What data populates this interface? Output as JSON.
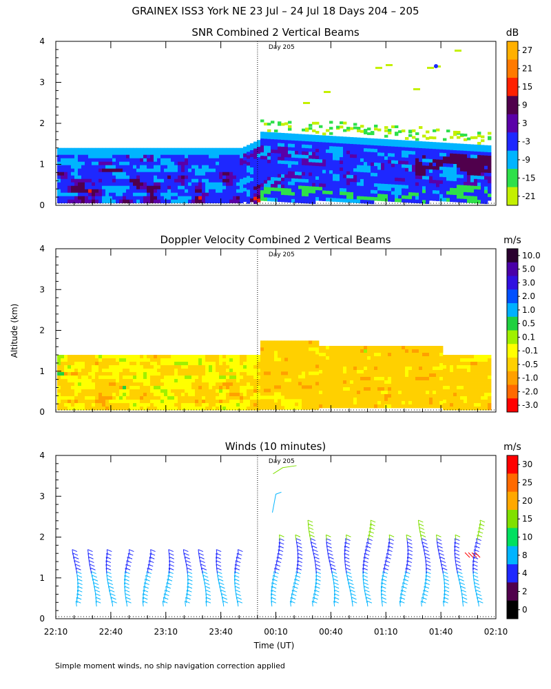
{
  "figure": {
    "title": "GRAINEX ISS3 York NE  23 Jul – 24 Jul 18 Days 204 – 205",
    "ylabel": "Altitude (km)",
    "xlabel": "Time (UT)",
    "day_marker": "Day 205",
    "footnote": "Simple moment winds, no ship navigation correction applied",
    "x_ticks": [
      "22:10",
      "22:40",
      "23:10",
      "23:40",
      "00:10",
      "00:40",
      "01:10",
      "01:40",
      "02:10"
    ],
    "y_ticks": [
      "0",
      "1",
      "2",
      "3",
      "4"
    ]
  },
  "chart_data": [
    {
      "type": "heatmap",
      "title": "SNR Combined 2 Vertical Beams",
      "units": "dB",
      "x_range": [
        "22:10",
        "02:10"
      ],
      "y_range_km": [
        0,
        4
      ],
      "day_boundary": "00:00",
      "colorbar_labels": [
        "27",
        "21",
        "15",
        "9",
        "3",
        "-3",
        "-9",
        "-15",
        "-21"
      ],
      "colorbar_colors": [
        "#ffb000",
        "#ff7a00",
        "#ff2000",
        "#50004c",
        "#5a00a8",
        "#1e28ff",
        "#00b4ff",
        "#2ee04a",
        "#c4f000"
      ],
      "data_top_km": {
        "before_day_boundary": 1.4,
        "after_day_boundary": 1.8
      },
      "grid": false
    },
    {
      "type": "heatmap",
      "title": "Doppler Velocity Combined 2 Vertical Beams",
      "units": "m/s",
      "x_range": [
        "22:10",
        "02:10"
      ],
      "y_range_km": [
        0,
        4
      ],
      "day_boundary": "00:00",
      "colorbar_labels": [
        "10.0",
        "5.0",
        "3.0",
        "2.0",
        "1.0",
        "0.5",
        "0.1",
        "-0.1",
        "-0.5",
        "-1.0",
        "-2.0",
        "-3.0"
      ],
      "colorbar_colors": [
        "#2a0030",
        "#4a00a8",
        "#3010e0",
        "#0050ff",
        "#00b0ff",
        "#20d040",
        "#a0f000",
        "#ffff00",
        "#ffd000",
        "#ffa000",
        "#ff6a00",
        "#ff0000"
      ],
      "data_top_km": {
        "before_day_boundary": 1.4,
        "after_day_boundary": 1.75
      },
      "grid": false
    },
    {
      "type": "scatter",
      "title": "Winds (10 minutes)",
      "units": "m/s",
      "x_range": [
        "22:10",
        "02:10"
      ],
      "y_range_km": [
        0,
        4
      ],
      "day_boundary": "00:00",
      "colorbar_labels": [
        "30",
        "25",
        "20",
        "15",
        "10",
        "8",
        "4",
        "2",
        "0"
      ],
      "colorbar_colors": [
        "#ff0000",
        "#ff6a00",
        "#ffa800",
        "#80e000",
        "#00e060",
        "#00b4ff",
        "#1e28ff",
        "#50004c",
        "#000000"
      ],
      "profile_times": [
        "22:20",
        "22:30",
        "22:40",
        "22:50",
        "23:00",
        "23:10",
        "23:20",
        "23:30",
        "23:40",
        "23:50",
        "00:10",
        "00:20",
        "00:30",
        "00:40",
        "00:50",
        "01:00",
        "01:10",
        "01:20",
        "01:30",
        "01:40",
        "01:50",
        "02:00"
      ],
      "grid": false
    }
  ]
}
